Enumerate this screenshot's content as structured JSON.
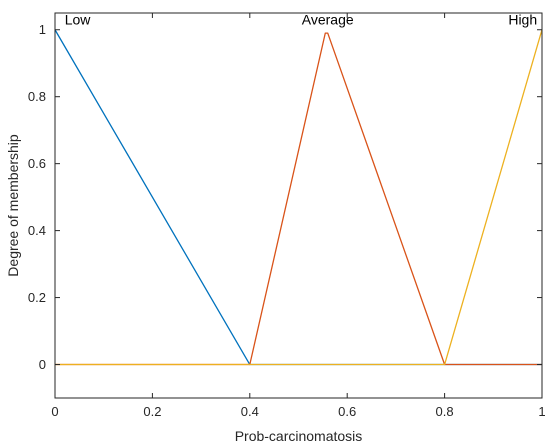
{
  "chart_data": {
    "type": "line",
    "title": "",
    "xlabel": "Prob-carcinomatosis",
    "ylabel": "Degree of membership",
    "xlim": [
      0,
      1
    ],
    "ylim": [
      -0.1,
      1.05
    ],
    "xticks": [
      0,
      0.2,
      0.4,
      0.6,
      0.8,
      1
    ],
    "xtick_labels": [
      "0",
      "0.2",
      "0.4",
      "0.6",
      "0.8",
      "1"
    ],
    "yticks": [
      0,
      0.2,
      0.4,
      0.6,
      0.8,
      1
    ],
    "ytick_labels": [
      "0",
      "0.2",
      "0.4",
      "0.6",
      "0.8",
      "1"
    ],
    "grid": false,
    "series": [
      {
        "name": "Low",
        "color": "#0072BD",
        "x": [
          0,
          0.4,
          1
        ],
        "y": [
          1,
          0,
          0
        ]
      },
      {
        "name": "Average",
        "color": "#D95319",
        "x": [
          0,
          0.4,
          0.555,
          0.56,
          0.8,
          1
        ],
        "y": [
          0,
          0,
          0.99,
          0.99,
          0,
          0
        ]
      },
      {
        "name": "High",
        "color": "#EDB120",
        "x": [
          0,
          0.8,
          1
        ],
        "y": [
          0,
          0,
          1
        ]
      }
    ],
    "annotations": [
      {
        "text": "Low",
        "x": 0.02,
        "y": 1.03,
        "anchor": "start"
      },
      {
        "text": "Average",
        "x": 0.56,
        "y": 1.03,
        "anchor": "middle"
      },
      {
        "text": "High",
        "x": 0.99,
        "y": 1.03,
        "anchor": "end"
      }
    ]
  }
}
